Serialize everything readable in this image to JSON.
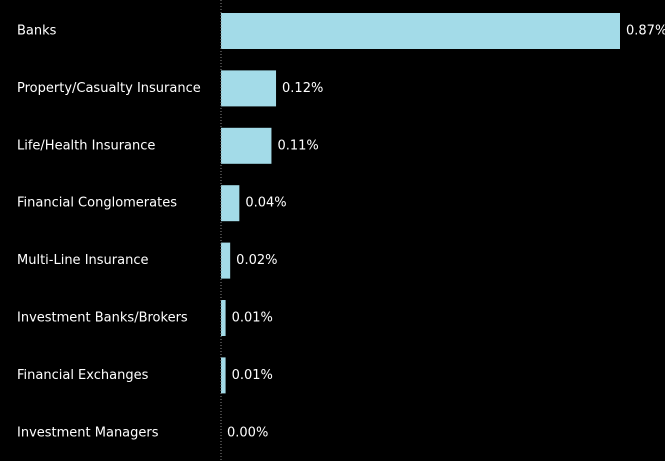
{
  "chart_data": {
    "type": "hbar",
    "categories": [
      "Banks",
      "Property/Casualty Insurance",
      "Life/Health Insurance",
      "Financial Conglomerates",
      "Multi-Line Insurance",
      "Investment Banks/Brokers",
      "Financial Exchanges",
      "Investment Managers"
    ],
    "values": [
      0.87,
      0.12,
      0.11,
      0.04,
      0.02,
      0.01,
      0.01,
      0.0
    ],
    "value_labels": [
      "0.87%",
      "0.12%",
      "0.11%",
      "0.04%",
      "0.02%",
      "0.01%",
      "0.01%",
      "0.00%"
    ],
    "color": "#a3dbe8",
    "xlim": [
      0,
      0.87
    ]
  }
}
